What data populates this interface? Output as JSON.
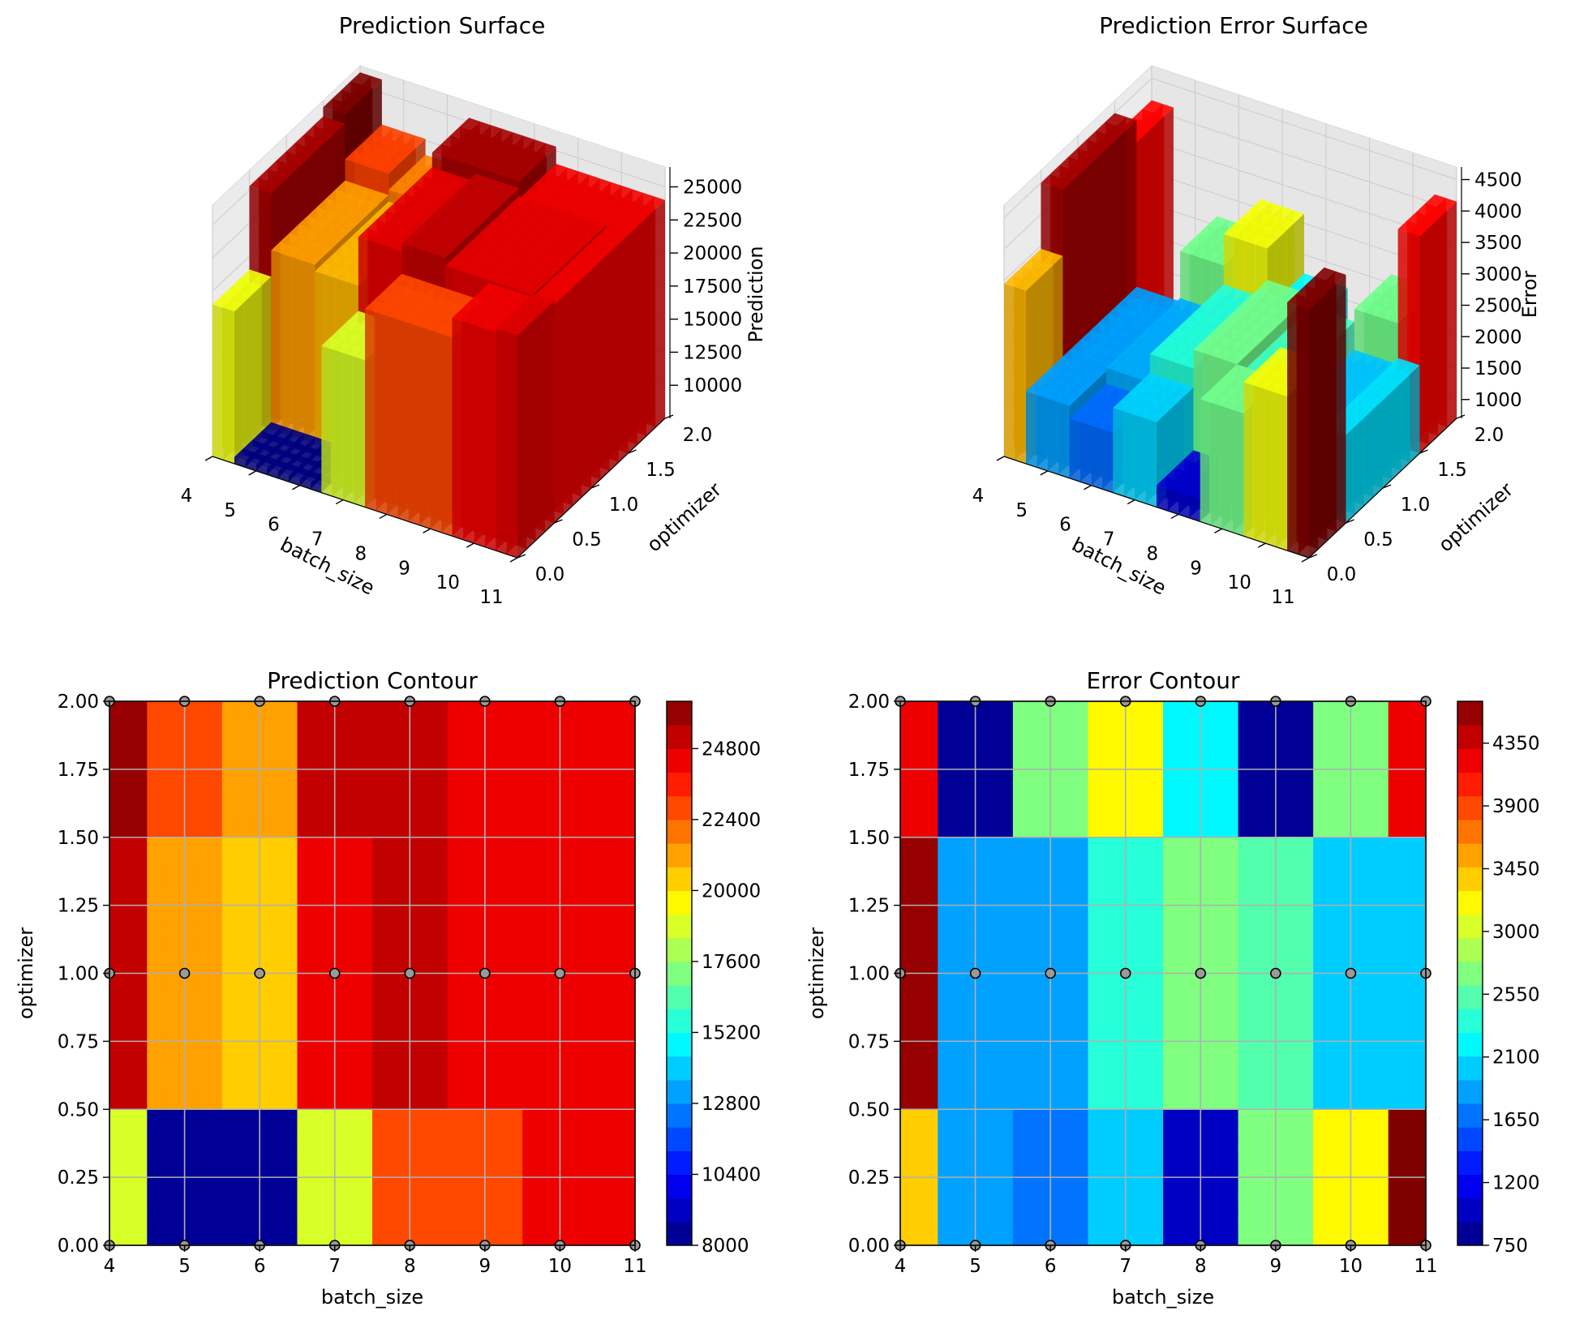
{
  "chart_data": [
    {
      "type": "surface3d",
      "title": "Prediction Surface",
      "xlabel": "batch_size",
      "ylabel": "optimizer",
      "zlabel": "Prediction",
      "x_ticks": [
        "4",
        "5",
        "6",
        "7",
        "8",
        "9",
        "10",
        "11"
      ],
      "y_ticks": [
        "0.0",
        "0.5",
        "1.0",
        "1.5",
        "2.0"
      ],
      "z_ticks": [
        "10000",
        "12500",
        "15000",
        "17500",
        "20000",
        "22500",
        "25000"
      ],
      "z_range": [
        7500,
        26500
      ],
      "colormap": "jet",
      "color_range": [
        8000,
        26000
      ]
    },
    {
      "type": "surface3d",
      "title": "Prediction Error Surface",
      "xlabel": "batch_size",
      "ylabel": "optimizer",
      "zlabel": "Error",
      "x_ticks": [
        "4",
        "5",
        "6",
        "7",
        "8",
        "9",
        "10",
        "11"
      ],
      "y_ticks": [
        "0.0",
        "0.5",
        "1.0",
        "1.5",
        "2.0"
      ],
      "z_ticks": [
        "1000",
        "1500",
        "2000",
        "2500",
        "3000",
        "3500",
        "4000",
        "4500"
      ],
      "z_range": [
        700,
        4700
      ],
      "colormap": "jet",
      "color_range": [
        750,
        4650
      ]
    },
    {
      "type": "heatmap",
      "title": "Prediction Contour",
      "xlabel": "batch_size",
      "ylabel": "optimizer",
      "x_ticks": [
        "4",
        "5",
        "6",
        "7",
        "8",
        "9",
        "10",
        "11"
      ],
      "y_ticks": [
        "0.00",
        "0.25",
        "0.50",
        "0.75",
        "1.00",
        "1.25",
        "1.50",
        "1.75",
        "2.00"
      ],
      "xlim": [
        4,
        11
      ],
      "ylim": [
        0,
        2
      ],
      "grid": true,
      "colormap": "jet",
      "x": [
        4,
        5,
        6,
        7,
        8,
        9,
        10,
        11
      ],
      "y": [
        0,
        1,
        2
      ],
      "z": [
        [
          19000,
          8000,
          8000,
          18600,
          22500,
          22500,
          24000,
          24300
        ],
        [
          25300,
          21000,
          20500,
          24200,
          24800,
          24200,
          24200,
          24000
        ],
        [
          26000,
          22600,
          21400,
          25300,
          25300,
          24000,
          24000,
          24000
        ]
      ],
      "colorbar_ticks": [
        "8000",
        "10400",
        "12800",
        "15200",
        "17600",
        "20000",
        "22400",
        "24800"
      ],
      "colorbar_range": [
        8000,
        26400
      ]
    },
    {
      "type": "heatmap",
      "title": "Error Contour",
      "xlabel": "batch_size",
      "ylabel": "optimizer",
      "x_ticks": [
        "4",
        "5",
        "6",
        "7",
        "8",
        "9",
        "10",
        "11"
      ],
      "y_ticks": [
        "0.00",
        "0.25",
        "0.50",
        "0.75",
        "1.00",
        "1.25",
        "1.50",
        "1.75",
        "2.00"
      ],
      "xlim": [
        4,
        11
      ],
      "ylim": [
        0,
        2
      ],
      "grid": true,
      "colormap": "jet",
      "x": [
        4,
        5,
        6,
        7,
        8,
        9,
        10,
        11
      ],
      "y": [
        0,
        1,
        2
      ],
      "z": [
        [
          3450,
          1850,
          1650,
          2050,
          1050,
          2650,
          3150,
          4650
        ],
        [
          4500,
          1850,
          1900,
          2350,
          2650,
          2450,
          2000,
          2100
        ],
        [
          4150,
          850,
          2650,
          3150,
          2200,
          850,
          2650,
          4150
        ]
      ],
      "colorbar_ticks": [
        "750",
        "1200",
        "1650",
        "2100",
        "2550",
        "3000",
        "3450",
        "3900",
        "4350"
      ],
      "colorbar_range": [
        750,
        4650
      ]
    }
  ]
}
